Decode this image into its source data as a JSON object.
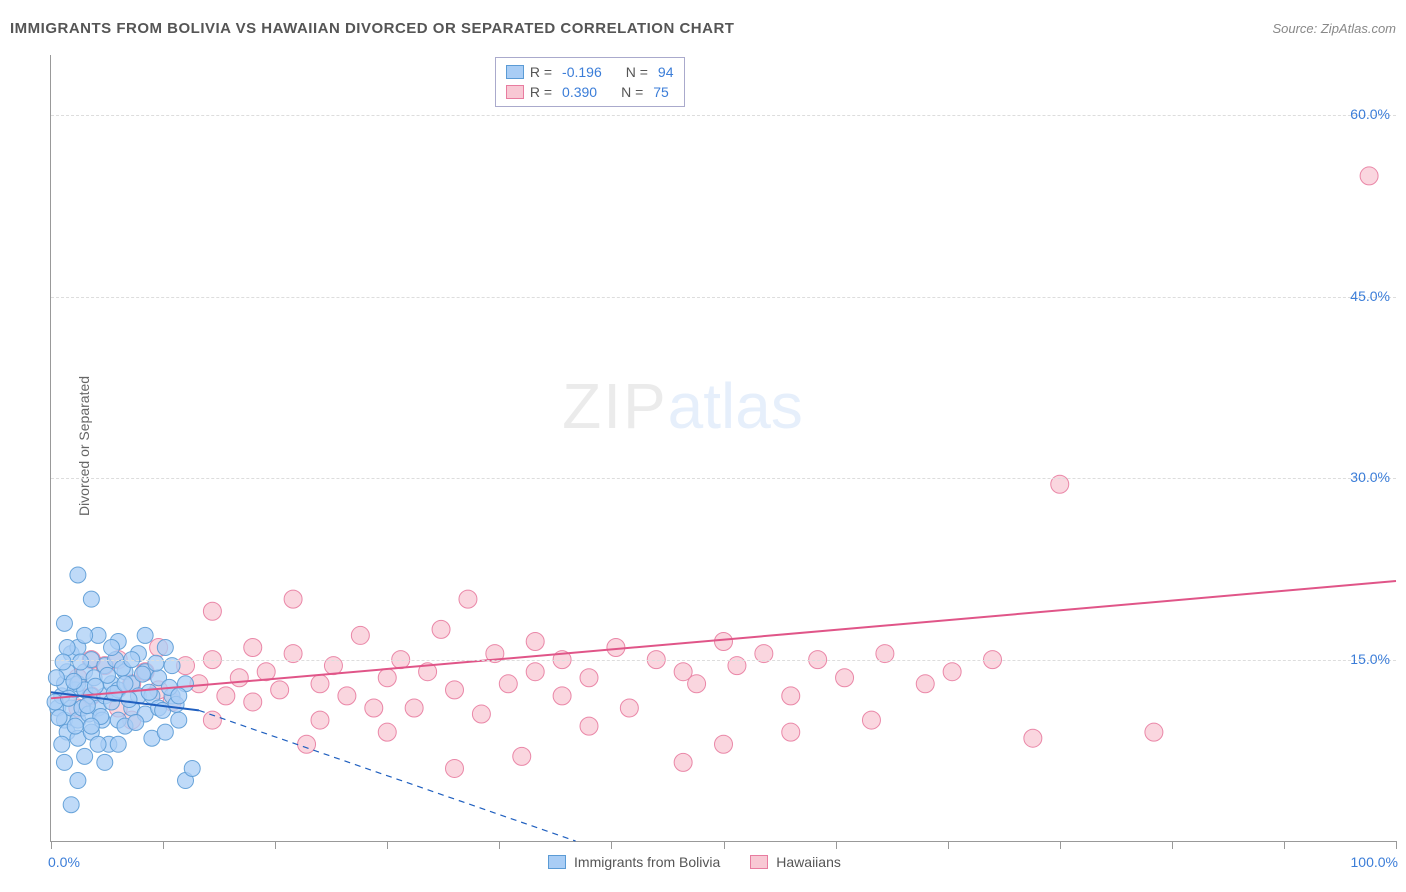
{
  "header": {
    "title": "IMMIGRANTS FROM BOLIVIA VS HAWAIIAN DIVORCED OR SEPARATED CORRELATION CHART",
    "source": "Source: ZipAtlas.com"
  },
  "y_axis_label": "Divorced or Separated",
  "chart": {
    "type": "scatter",
    "background_color": "#ffffff",
    "grid_color": "#dddddd",
    "axis_color": "#999999",
    "xlim": [
      0,
      100
    ],
    "ylim": [
      0,
      65
    ],
    "x_ticks": [
      0,
      8.33,
      16.67,
      25,
      33.33,
      41.67,
      50,
      58.33,
      66.67,
      75,
      83.33,
      91.67,
      100
    ],
    "x_tick_labeled": {
      "0": "0.0%",
      "100": "100.0%"
    },
    "y_ticks": [
      15,
      30,
      45,
      60
    ],
    "y_tick_labels": [
      "15.0%",
      "30.0%",
      "45.0%",
      "60.0%"
    ],
    "label_color": "#3b7dd8",
    "label_fontsize": 14
  },
  "series": {
    "bolivia": {
      "label": "Immigrants from Bolivia",
      "fill": "#a9cdf5",
      "stroke": "#5b9bd5",
      "opacity": 0.75,
      "marker_radius": 8,
      "trend_color": "#1f5fbf",
      "trend_width": 2,
      "trend_start": [
        0,
        12.3
      ],
      "trend_end": [
        11,
        10.8
      ],
      "trend_dash_start": [
        11,
        10.8
      ],
      "trend_dash_end": [
        39,
        0
      ],
      "R": "-0.196",
      "N": "94",
      "points": [
        [
          0.5,
          11
        ],
        [
          0.8,
          12
        ],
        [
          1,
          10
        ],
        [
          1,
          13
        ],
        [
          1.2,
          9
        ],
        [
          1.2,
          14
        ],
        [
          1.5,
          11
        ],
        [
          1.5,
          15.5
        ],
        [
          1.8,
          12.5
        ],
        [
          2,
          8.5
        ],
        [
          2,
          10
        ],
        [
          2,
          13
        ],
        [
          2,
          16
        ],
        [
          2.3,
          11
        ],
        [
          2.5,
          7
        ],
        [
          2.5,
          12.5
        ],
        [
          2.5,
          14
        ],
        [
          2.8,
          10.5
        ],
        [
          3,
          9
        ],
        [
          3,
          12
        ],
        [
          3,
          15
        ],
        [
          3.2,
          13.5
        ],
        [
          3.5,
          11
        ],
        [
          3.5,
          17
        ],
        [
          3.8,
          10
        ],
        [
          4,
          12
        ],
        [
          4,
          14.5
        ],
        [
          4.3,
          8
        ],
        [
          4.5,
          11.5
        ],
        [
          4.5,
          13
        ],
        [
          4.8,
          15
        ],
        [
          5,
          10
        ],
        [
          5,
          12.5
        ],
        [
          5,
          16.5
        ],
        [
          5.5,
          9.5
        ],
        [
          5.5,
          14
        ],
        [
          6,
          11
        ],
        [
          6,
          13
        ],
        [
          6.5,
          12
        ],
        [
          6.5,
          15.5
        ],
        [
          7,
          10.5
        ],
        [
          7,
          14
        ],
        [
          7.5,
          8.5
        ],
        [
          7.5,
          12
        ],
        [
          8,
          11
        ],
        [
          8,
          13.5
        ],
        [
          8.5,
          16
        ],
        [
          9,
          12
        ],
        [
          9.5,
          10
        ],
        [
          10,
          13
        ],
        [
          10,
          5
        ],
        [
          10.5,
          6
        ],
        [
          1.5,
          3
        ],
        [
          2,
          22
        ],
        [
          3,
          20
        ],
        [
          1,
          18
        ],
        [
          0.3,
          11.5
        ],
        [
          0.6,
          10.2
        ],
        [
          1.3,
          11.8
        ],
        [
          1.7,
          13.2
        ],
        [
          2.2,
          14.8
        ],
        [
          2.7,
          11.2
        ],
        [
          3.3,
          12.8
        ],
        [
          3.7,
          10.3
        ],
        [
          4.2,
          13.7
        ],
        [
          4.7,
          12.2
        ],
        [
          5.3,
          14.3
        ],
        [
          5.8,
          11.7
        ],
        [
          6.3,
          9.8
        ],
        [
          6.8,
          13.8
        ],
        [
          7.3,
          12.3
        ],
        [
          7.8,
          14.7
        ],
        [
          8.3,
          10.8
        ],
        [
          8.8,
          12.7
        ],
        [
          9.3,
          11.3
        ],
        [
          4,
          6.5
        ],
        [
          0.8,
          8
        ],
        [
          1.8,
          9.5
        ],
        [
          2.5,
          17
        ],
        [
          1.2,
          16
        ],
        [
          3.5,
          8
        ],
        [
          5,
          8
        ],
        [
          6,
          15
        ],
        [
          7,
          17
        ],
        [
          8.5,
          9
        ],
        [
          9,
          14.5
        ],
        [
          1,
          6.5
        ],
        [
          2,
          5
        ],
        [
          0.4,
          13.5
        ],
        [
          0.9,
          14.8
        ],
        [
          3,
          9.5
        ],
        [
          4.5,
          16
        ],
        [
          5.5,
          13
        ],
        [
          9.5,
          12
        ]
      ]
    },
    "hawaiians": {
      "label": "Hawaiians",
      "fill": "#f8c8d4",
      "stroke": "#e87ca0",
      "opacity": 0.75,
      "marker_radius": 9,
      "trend_color": "#e05588",
      "trend_width": 2,
      "trend_start": [
        0,
        11.8
      ],
      "trend_end": [
        100,
        21.5
      ],
      "R": "0.390",
      "N": "75",
      "points": [
        [
          2,
          13.5
        ],
        [
          3,
          12
        ],
        [
          4,
          14.5
        ],
        [
          5,
          11
        ],
        [
          5,
          15
        ],
        [
          6,
          13
        ],
        [
          7,
          14
        ],
        [
          8,
          12.5
        ],
        [
          9,
          11.5
        ],
        [
          10,
          14.5
        ],
        [
          11,
          13
        ],
        [
          12,
          15
        ],
        [
          12,
          10
        ],
        [
          13,
          12
        ],
        [
          14,
          13.5
        ],
        [
          15,
          11.5
        ],
        [
          15,
          16
        ],
        [
          16,
          14
        ],
        [
          17,
          12.5
        ],
        [
          18,
          15.5
        ],
        [
          18,
          20
        ],
        [
          20,
          13
        ],
        [
          20,
          10
        ],
        [
          21,
          14.5
        ],
        [
          22,
          12
        ],
        [
          23,
          17
        ],
        [
          25,
          13.5
        ],
        [
          25,
          9
        ],
        [
          26,
          15
        ],
        [
          27,
          11
        ],
        [
          28,
          14
        ],
        [
          29,
          17.5
        ],
        [
          30,
          12.5
        ],
        [
          31,
          20
        ],
        [
          32,
          10.5
        ],
        [
          33,
          15.5
        ],
        [
          34,
          13
        ],
        [
          35,
          7
        ],
        [
          36,
          14
        ],
        [
          36,
          16.5
        ],
        [
          38,
          12
        ],
        [
          40,
          13.5
        ],
        [
          40,
          9.5
        ],
        [
          42,
          16
        ],
        [
          43,
          11
        ],
        [
          45,
          15
        ],
        [
          47,
          14
        ],
        [
          47,
          6.5
        ],
        [
          48,
          13
        ],
        [
          50,
          16.5
        ],
        [
          50,
          8
        ],
        [
          51,
          14.5
        ],
        [
          53,
          15.5
        ],
        [
          55,
          12
        ],
        [
          55,
          9
        ],
        [
          57,
          15
        ],
        [
          59,
          13.5
        ],
        [
          61,
          10
        ],
        [
          62,
          15.5
        ],
        [
          65,
          13
        ],
        [
          67,
          14
        ],
        [
          70,
          15
        ],
        [
          73,
          8.5
        ],
        [
          75,
          29.5
        ],
        [
          82,
          9
        ],
        [
          98,
          55
        ],
        [
          2,
          11
        ],
        [
          3,
          15
        ],
        [
          6,
          10
        ],
        [
          8,
          16
        ],
        [
          12,
          19
        ],
        [
          19,
          8
        ],
        [
          24,
          11
        ],
        [
          30,
          6
        ],
        [
          38,
          15
        ]
      ]
    }
  },
  "legend_top": {
    "r_label": "R =",
    "n_label": "N ="
  },
  "watermark": {
    "zip": "ZIP",
    "atlas": "atlas"
  }
}
